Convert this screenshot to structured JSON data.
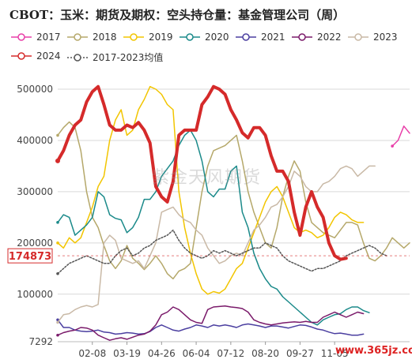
{
  "title": "CBOT：玉米：期货及期权：空头持仓量：基金管理公司（周）",
  "watermark": "紫金天风期货",
  "footer_mark": "www.365jz.com",
  "chart_data": {
    "type": "line",
    "title": "CBOT：玉米：期货及期权：空头持仓量：基金管理公司（周）",
    "xlabel": "",
    "ylabel": "",
    "ylim": [
      7292,
      520000
    ],
    "yticks": [
      7292,
      100000,
      200000,
      300000,
      400000,
      500000
    ],
    "ytick_labels": [
      "7292",
      "100000",
      "200000",
      "300000",
      "400000",
      "500000"
    ],
    "x_ticks": [
      "02-08",
      "03-19",
      "04-26",
      "06-04",
      "07-12",
      "08-20",
      "09-27",
      "11-05"
    ],
    "x_tick_index": [
      6,
      12,
      18,
      24,
      30,
      36,
      42,
      48
    ],
    "highlight_value": "174873",
    "grid": true,
    "legend_position": "top",
    "series": [
      {
        "name": "2017",
        "color": "#e83ea8",
        "style": "solid",
        "width": 1.5,
        "values": [
          null,
          null,
          null,
          null,
          null,
          null,
          null,
          null,
          null,
          null,
          null,
          null,
          null,
          null,
          null,
          null,
          null,
          null,
          null,
          null,
          null,
          null,
          null,
          null,
          null,
          null,
          null,
          null,
          null,
          null,
          null,
          null,
          null,
          null,
          null,
          null,
          null,
          null,
          null,
          null,
          null,
          null,
          null,
          null,
          null,
          null,
          null,
          null,
          null,
          null,
          null,
          null,
          null,
          null,
          null,
          null,
          null,
          null,
          389000,
          400000,
          428000,
          414000
        ]
      },
      {
        "name": "2018",
        "color": "#b5a86a",
        "style": "solid",
        "width": 1.5,
        "values": [
          410000,
          425000,
          436000,
          425000,
          380000,
          300000,
          250000,
          230000,
          195000,
          165000,
          150000,
          165000,
          195000,
          170000,
          160000,
          148000,
          160000,
          175000,
          160000,
          140000,
          130000,
          145000,
          150000,
          160000,
          230000,
          300000,
          350000,
          380000,
          385000,
          390000,
          400000,
          410000,
          360000,
          300000,
          260000,
          230000,
          200000,
          190000,
          230000,
          290000,
          330000,
          360000,
          340000,
          280000,
          240000,
          230000,
          220000,
          215000,
          210000,
          225000,
          240000,
          240000,
          235000,
          200000,
          170000,
          165000,
          175000,
          190000,
          210000,
          200000,
          190000,
          200000
        ]
      },
      {
        "name": "2019",
        "color": "#f2c500",
        "style": "solid",
        "width": 1.5,
        "values": [
          200000,
          190000,
          210000,
          200000,
          210000,
          240000,
          270000,
          310000,
          330000,
          400000,
          440000,
          460000,
          410000,
          420000,
          460000,
          480000,
          505000,
          500000,
          490000,
          470000,
          460000,
          300000,
          230000,
          180000,
          140000,
          110000,
          100000,
          105000,
          102000,
          110000,
          130000,
          150000,
          160000,
          190000,
          220000,
          250000,
          280000,
          300000,
          310000,
          290000,
          260000,
          230000,
          220000,
          225000,
          220000,
          210000,
          215000,
          230000,
          250000,
          260000,
          255000,
          245000,
          240000,
          240000,
          null,
          null,
          null,
          null,
          null,
          null,
          null,
          null
        ]
      },
      {
        "name": "2020",
        "color": "#1b8a8a",
        "style": "solid",
        "width": 1.5,
        "values": [
          240000,
          255000,
          250000,
          215000,
          225000,
          235000,
          250000,
          300000,
          290000,
          255000,
          248000,
          245000,
          220000,
          230000,
          250000,
          285000,
          285000,
          300000,
          330000,
          345000,
          360000,
          390000,
          410000,
          420000,
          400000,
          360000,
          300000,
          290000,
          305000,
          305000,
          340000,
          350000,
          260000,
          230000,
          180000,
          150000,
          130000,
          115000,
          110000,
          95000,
          85000,
          75000,
          65000,
          55000,
          45000,
          40000,
          50000,
          55000,
          60000,
          62000,
          70000,
          75000,
          75000,
          68000,
          64000,
          null,
          null,
          null,
          null,
          null,
          null,
          null
        ]
      },
      {
        "name": "2021",
        "color": "#4b3fa0",
        "style": "solid",
        "width": 1.5,
        "values": [
          50000,
          35000,
          35000,
          30000,
          28000,
          27000,
          28000,
          30000,
          26000,
          25000,
          22000,
          23000,
          25000,
          24000,
          22000,
          23000,
          27000,
          35000,
          40000,
          35000,
          30000,
          28000,
          32000,
          35000,
          40000,
          38000,
          35000,
          40000,
          38000,
          40000,
          38000,
          35000,
          40000,
          42000,
          40000,
          38000,
          35000,
          38000,
          38000,
          36000,
          34000,
          37000,
          40000,
          39000,
          36000,
          32000,
          30000,
          26000,
          23000,
          24000,
          22000,
          20000,
          20000,
          22000,
          null,
          null,
          null,
          null,
          null,
          null,
          null,
          null
        ]
      },
      {
        "name": "2022",
        "color": "#7a1a6a",
        "style": "solid",
        "width": 1.5,
        "values": [
          20000,
          25000,
          28000,
          30000,
          35000,
          34000,
          30000,
          20000,
          15000,
          10000,
          13000,
          15000,
          12000,
          16000,
          20000,
          22000,
          28000,
          40000,
          60000,
          65000,
          75000,
          70000,
          60000,
          50000,
          45000,
          43000,
          70000,
          75000,
          76000,
          77000,
          75000,
          74000,
          72000,
          65000,
          50000,
          45000,
          42000,
          40000,
          42000,
          44000,
          45000,
          46000,
          45000,
          47000,
          45000,
          45000,
          55000,
          60000,
          65000,
          60000,
          55000,
          60000,
          65000,
          62000,
          null,
          null,
          null,
          null,
          null,
          null,
          null,
          null
        ]
      },
      {
        "name": "2023",
        "color": "#c9b9a6",
        "style": "solid",
        "width": 1.5,
        "values": [
          45000,
          60000,
          62000,
          70000,
          75000,
          78000,
          75000,
          80000,
          200000,
          215000,
          205000,
          170000,
          165000,
          160000,
          165000,
          150000,
          175000,
          200000,
          260000,
          265000,
          270000,
          255000,
          245000,
          240000,
          225000,
          215000,
          190000,
          175000,
          160000,
          165000,
          175000,
          180000,
          175000,
          200000,
          225000,
          235000,
          250000,
          270000,
          275000,
          290000,
          310000,
          340000,
          330000,
          310000,
          300000,
          300000,
          315000,
          320000,
          330000,
          345000,
          350000,
          345000,
          330000,
          340000,
          350000,
          350000,
          null,
          null,
          null,
          null,
          null,
          null
        ]
      },
      {
        "name": "2024",
        "color": "#d52a2a",
        "style": "solid",
        "width": 4,
        "values": [
          360000,
          380000,
          410000,
          430000,
          440000,
          475000,
          495000,
          505000,
          470000,
          430000,
          420000,
          420000,
          430000,
          425000,
          435000,
          420000,
          395000,
          310000,
          290000,
          280000,
          320000,
          410000,
          420000,
          420000,
          420000,
          470000,
          485000,
          505000,
          500000,
          490000,
          460000,
          440000,
          415000,
          405000,
          425000,
          425000,
          410000,
          370000,
          340000,
          340000,
          320000,
          260000,
          215000,
          270000,
          300000,
          270000,
          250000,
          200000,
          175000,
          168000,
          170000,
          null,
          null,
          null,
          null,
          null,
          null,
          null,
          null,
          null,
          null,
          null
        ]
      },
      {
        "name": "2017-2023均值",
        "color": "#555555",
        "style": "dotted",
        "width": 1.5,
        "values": [
          140000,
          150000,
          160000,
          165000,
          170000,
          175000,
          170000,
          165000,
          160000,
          160000,
          175000,
          185000,
          190000,
          175000,
          180000,
          190000,
          195000,
          205000,
          210000,
          215000,
          225000,
          205000,
          190000,
          180000,
          175000,
          170000,
          175000,
          185000,
          180000,
          185000,
          180000,
          175000,
          180000,
          185000,
          190000,
          190000,
          200000,
          195000,
          190000,
          175000,
          165000,
          160000,
          155000,
          150000,
          145000,
          150000,
          150000,
          155000,
          160000,
          165000,
          175000,
          180000,
          185000,
          190000,
          195000,
          190000,
          180000,
          175000,
          null,
          null,
          null,
          null
        ]
      }
    ]
  }
}
